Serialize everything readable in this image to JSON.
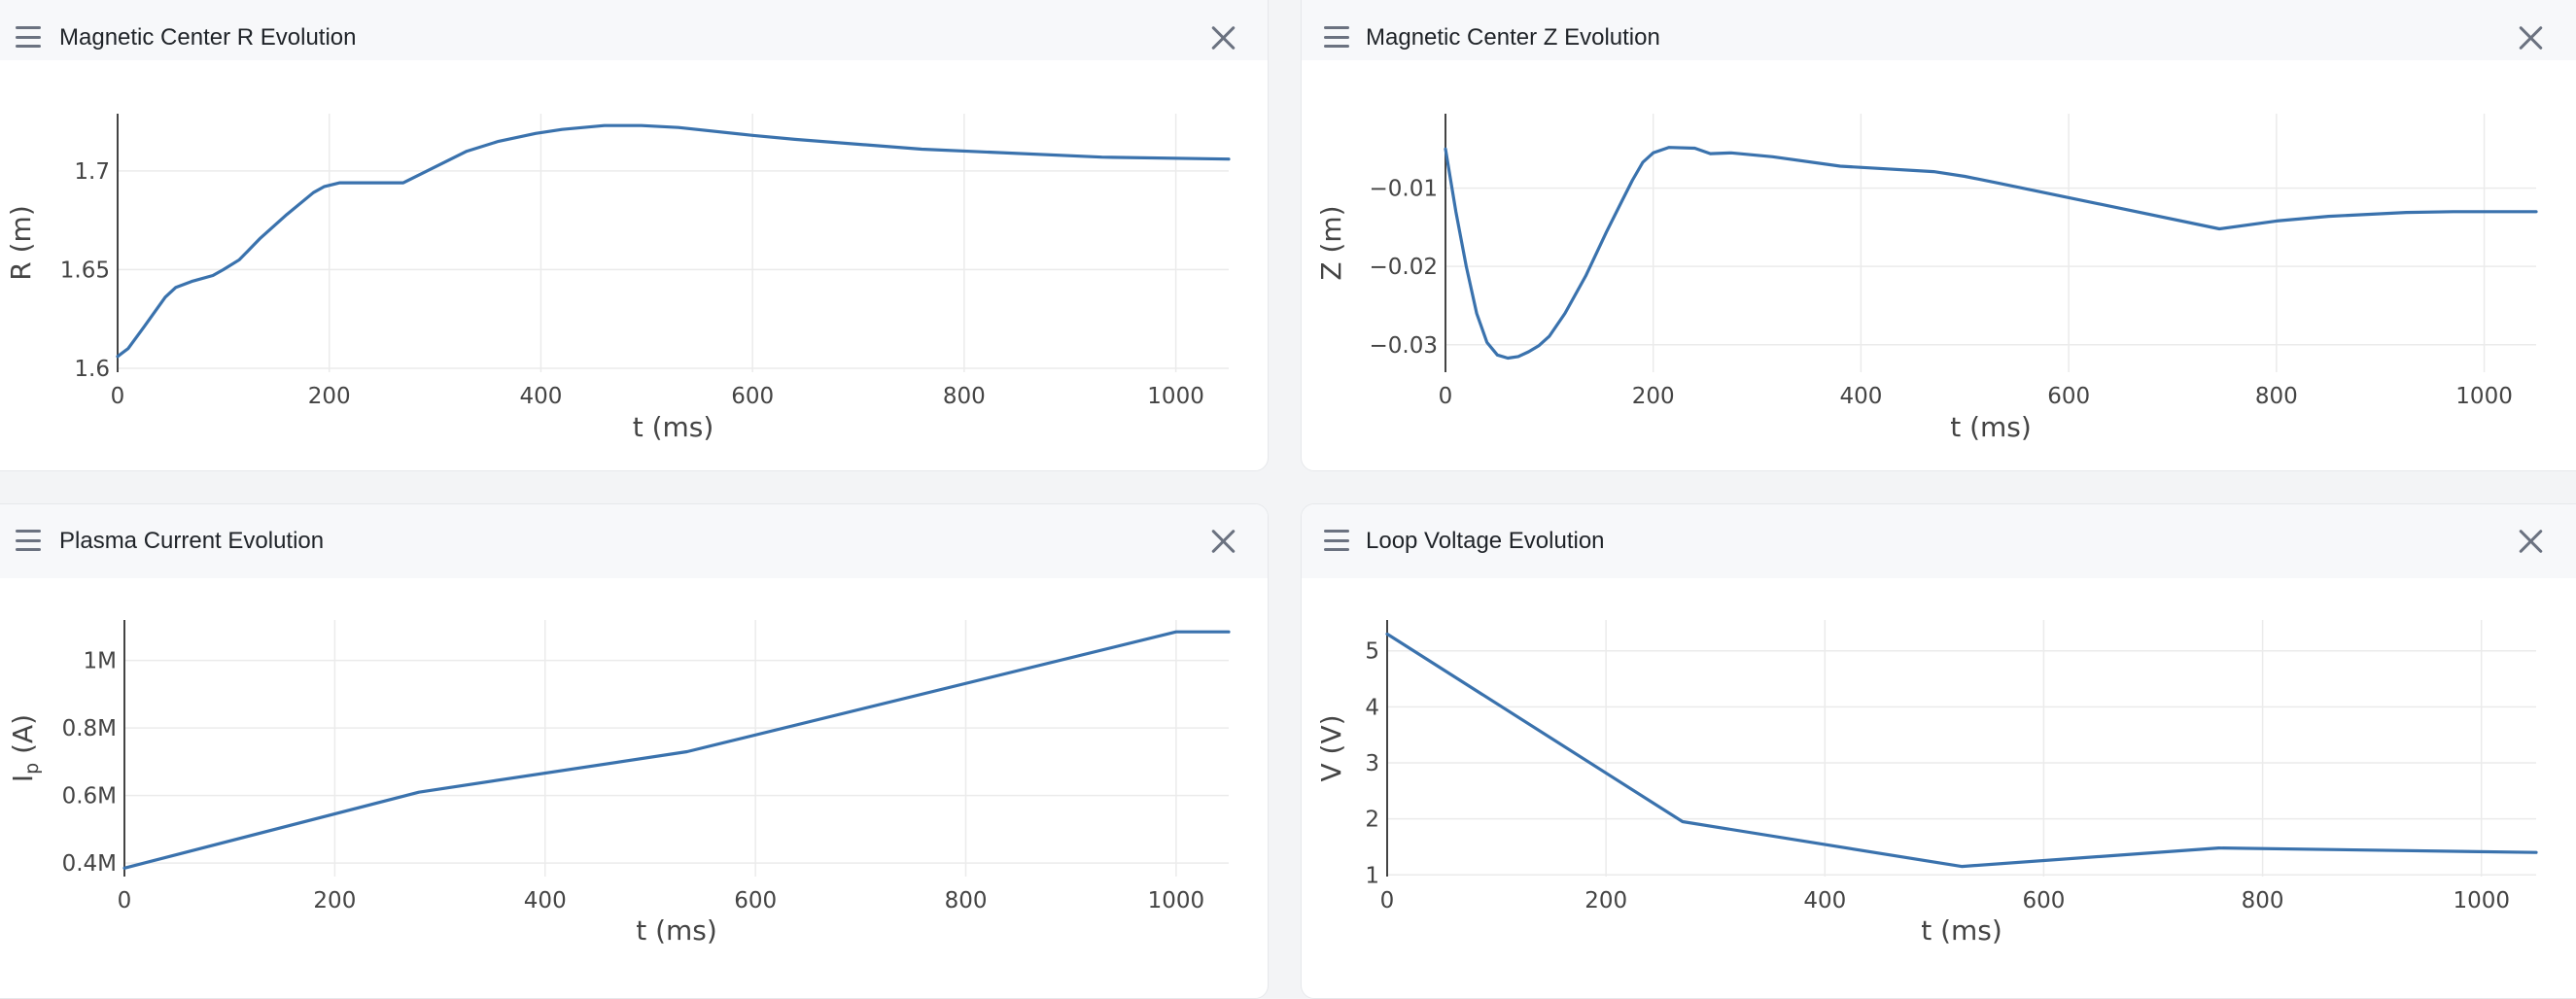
{
  "theme": {
    "line_color": "#3a72ad",
    "grid_color": "#ebebeb",
    "axis_color": "#444444"
  },
  "panels": [
    {
      "title": "Magnetic Center R Evolution",
      "menu_icon": "hamburger-icon",
      "close_icon": "close-icon"
    },
    {
      "title": "Magnetic Center Z Evolution",
      "menu_icon": "hamburger-icon",
      "close_icon": "close-icon"
    },
    {
      "title": "Plasma Current Evolution",
      "menu_icon": "hamburger-icon",
      "close_icon": "close-icon"
    },
    {
      "title": "Loop Voltage Evolution",
      "menu_icon": "hamburger-icon",
      "close_icon": "close-icon"
    }
  ],
  "chart_data": [
    {
      "type": "line",
      "xlabel": "t (ms)",
      "ylabel": "R (m)",
      "xlim": [
        0,
        1050
      ],
      "ylim": [
        1.598,
        1.729
      ],
      "xticks": [
        0,
        200,
        400,
        600,
        800,
        1000
      ],
      "xtick_labels": [
        "0",
        "200",
        "400",
        "600",
        "800",
        "1000"
      ],
      "yticks": [
        1.6,
        1.65,
        1.7
      ],
      "ytick_labels": [
        "1.6",
        "1.65",
        "1.7"
      ],
      "x": [
        0,
        10,
        25,
        45,
        55,
        70,
        90,
        100,
        115,
        135,
        160,
        185,
        195,
        210,
        270,
        330,
        360,
        395,
        420,
        460,
        495,
        530,
        600,
        640,
        760,
        930,
        1050
      ],
      "y": [
        1.606,
        1.61,
        1.621,
        1.636,
        1.641,
        1.644,
        1.647,
        1.65,
        1.655,
        1.666,
        1.678,
        1.689,
        1.692,
        1.694,
        1.694,
        1.71,
        1.715,
        1.719,
        1.721,
        1.723,
        1.723,
        1.722,
        1.718,
        1.716,
        1.711,
        1.707,
        1.706
      ]
    },
    {
      "type": "line",
      "xlabel": "t (ms)",
      "ylabel": "Z (m)",
      "xlim": [
        0,
        1050
      ],
      "ylim": [
        -0.0335,
        -0.0005
      ],
      "xticks": [
        0,
        200,
        400,
        600,
        800,
        1000
      ],
      "xtick_labels": [
        "0",
        "200",
        "400",
        "600",
        "800",
        "1000"
      ],
      "yticks": [
        -0.03,
        -0.02,
        -0.01
      ],
      "ytick_labels": [
        "−0.03",
        "−0.02",
        "−0.01"
      ],
      "x": [
        0,
        10,
        20,
        30,
        40,
        50,
        60,
        70,
        80,
        90,
        100,
        115,
        135,
        155,
        170,
        180,
        190,
        200,
        215,
        240,
        255,
        275,
        315,
        380,
        470,
        500,
        530,
        745,
        800,
        850,
        925,
        970,
        1050
      ],
      "y": [
        -0.005,
        -0.013,
        -0.02,
        -0.026,
        -0.0297,
        -0.0313,
        -0.0317,
        -0.0315,
        -0.0309,
        -0.0301,
        -0.0289,
        -0.026,
        -0.0212,
        -0.0156,
        -0.0116,
        -0.009,
        -0.0067,
        -0.0055,
        -0.0048,
        -0.0049,
        -0.0056,
        -0.0055,
        -0.006,
        -0.0072,
        -0.0079,
        -0.0085,
        -0.0093,
        -0.0152,
        -0.0142,
        -0.0136,
        -0.0131,
        -0.013,
        -0.013
      ]
    },
    {
      "type": "line",
      "xlabel": "t (ms)",
      "ylabel": "I_p (A)",
      "xlim": [
        0,
        1050
      ],
      "ylim": [
        360000,
        1120000
      ],
      "xticks": [
        0,
        200,
        400,
        600,
        800,
        1000
      ],
      "xtick_labels": [
        "0",
        "200",
        "400",
        "600",
        "800",
        "1000"
      ],
      "yticks": [
        400000,
        600000,
        800000,
        1000000
      ],
      "ytick_labels": [
        "0.4M",
        "0.6M",
        "0.8M",
        "1M"
      ],
      "x": [
        0,
        280,
        535,
        1000,
        1050
      ],
      "y": [
        385000,
        610000,
        730000,
        1085000,
        1085000
      ]
    },
    {
      "type": "line",
      "xlabel": "t (ms)",
      "ylabel": "V (V)",
      "xlim": [
        0,
        1050
      ],
      "ylim": [
        0.97,
        5.55
      ],
      "xticks": [
        0,
        200,
        400,
        600,
        800,
        1000
      ],
      "xtick_labels": [
        "0",
        "200",
        "400",
        "600",
        "800",
        "1000"
      ],
      "yticks": [
        1,
        2,
        3,
        4,
        5
      ],
      "ytick_labels": [
        "1",
        "2",
        "3",
        "4",
        "5"
      ],
      "x": [
        0,
        270,
        525,
        760,
        1050
      ],
      "y": [
        5.3,
        1.95,
        1.15,
        1.48,
        1.4
      ]
    }
  ]
}
